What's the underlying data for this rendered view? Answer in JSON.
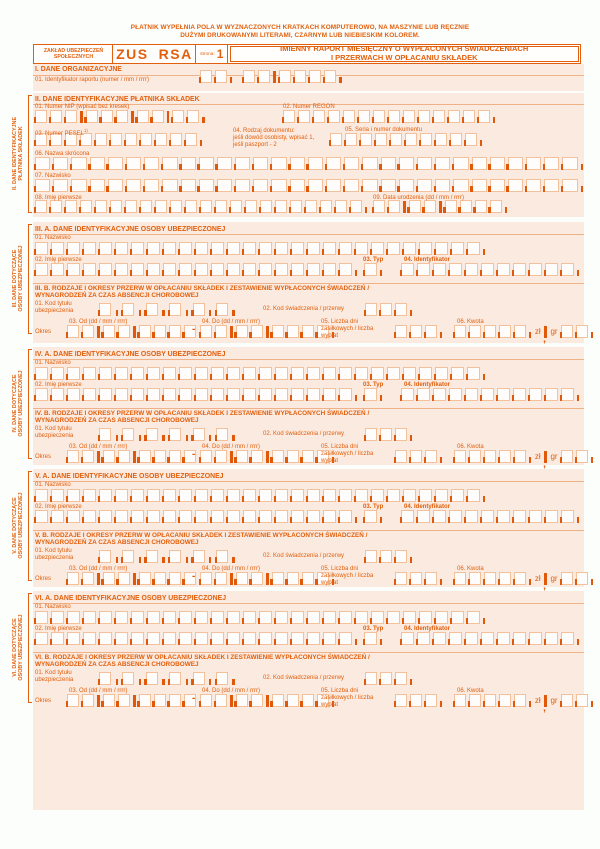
{
  "colors": {
    "accent": "#e2600d",
    "background": "#fbeae0",
    "cell_border": "#f3c09c",
    "tick": "#e0590a"
  },
  "note": {
    "line1": "PŁATNIK WYPEŁNIA POLA W WYZNACZONYCH KRATKACH KOMPUTEROWO, NA MASZYNIE LUB RĘCZNIE",
    "line2": "DUŻYMI DRUKOWANYMI LITERAMI, CZARNYM LUB NIEBIESKIM KOLOREM."
  },
  "header": {
    "org_line1": "ZAKŁAD UBEZPIECZEŃ",
    "org_line2": "SPOŁECZNYCH",
    "form_code": "ZUS",
    "form_symbol": "RSA",
    "page_label": "strona:",
    "page_number": "1",
    "title_line1": "IMIENNY RAPORT MIESIĘCZNY O WYPŁACONYCH ŚWIADCZENIACH",
    "title_line2": "I PRZERWACH W OPŁACANIU SKŁADEK"
  },
  "section_i": {
    "title": "I. DANE ORGANIZACYJNE",
    "f01": "01. Identyfikator raportu (numer / mm / rrrr)"
  },
  "section_ii": {
    "title": "II. DANE IDENTYFIKACYJNE PŁATNIKA SKŁADEK",
    "side1": "II. DANE IDENTYFIKACYJNE",
    "side2": "PŁATNIKA SKŁADEK",
    "f01": "01. Numer NIP (wpisać bez kresek)",
    "f02": "02. Numer REGON",
    "f03": "03. Numer PESEL",
    "f03_sup": "1)",
    "f04a": "04. Rodzaj dokumentu:",
    "f04b": "jeśli dowód osobisty, wpisać 1,",
    "f04c": "jeśli paszport - 2",
    "f05": "05. Seria i numer dokumentu",
    "f06": "06. Nazwa skrócona",
    "f07": "07. Nazwisko",
    "f08": "08. Imię pierwsze",
    "f09": "09. Data urodzenia (dd / mm / rrrr)"
  },
  "person_labels": {
    "f01": "01. Nazwisko",
    "f02": "02. Imię pierwsze",
    "f03": "03. Typ",
    "f04": "04. Identyfikator",
    "b01a": "01. Kod tytułu",
    "b01b": "ubezpieczenia",
    "b02": "02. Kod świadczenia / przerwy",
    "okres": "Okres",
    "b03": "03. Od (dd / mm / rrrr)",
    "b04": "04. Do (dd / mm / rrrr)",
    "b05a": "05. Liczba dni",
    "b05b": "zasiłkowych / liczba",
    "b05c": "wypłat",
    "b06": "06. Kwota",
    "zl": "zł",
    "gr": "gr",
    "dash": "-"
  },
  "persons": [
    {
      "id": "iii",
      "side1": "III. DANE DOTYCZĄCE",
      "side2": "OSOBY UBEZPIECZONEJ",
      "a_title": "III. A. DANE IDENTYFIKACYJNE OSOBY UBEZPIECZONEJ",
      "b_title1": "III. B. RODZAJE I OKRESY PRZERW  W  OPŁACANIU SKŁADEK I ZESTAWIENIE WYPŁACONYCH ŚWIADCZEŃ /",
      "b_title2": "WYNAGRODZEŃ ZA CZAS ABSENCJI CHOROBOWEJ"
    },
    {
      "id": "iv",
      "side1": "IV. DANE DOTYCZĄCE",
      "side2": "OSOBY UBEZPIECZONEJ",
      "a_title": "IV. A. DANE IDENTYFIKACYJNE OSOBY UBEZPIECZONEJ",
      "b_title1": "IV. B. RODZAJE I OKRESY PRZERW  W  OPŁACANIU SKŁADEK I ZESTAWIENIE WYPŁACONYCH ŚWIADCZEŃ /",
      "b_title2": "WYNAGRODZEŃ ZA CZAS ABSENCJI CHOROBOWEJ"
    },
    {
      "id": "v",
      "side1": "V. DANE DOTYCZĄCE",
      "side2": "OSOBY UBEZPIECZONEJ",
      "a_title": "V. A. DANE IDENTYFIKACYJNE OSOBY UBEZPIECZONEJ",
      "b_title1": "V. B. RODZAJE I OKRESY PRZERW  W  OPŁACANIU SKŁADEK I ZESTAWIENIE WYPŁACONYCH ŚWIADCZEŃ /",
      "b_title2": "WYNAGRODZEŃ ZA CZAS ABSENCJI CHOROBOWEJ"
    },
    {
      "id": "vi",
      "side1": "VI. DANE DOTYCZĄCE",
      "side2": "OSOBY UBEZPIECZONEJ",
      "a_title": "VI. A. DANE IDENTYFIKACYJNE OSOBY UBEZPIECZONEJ",
      "b_title1": "VI. B. RODZAJE I OKRESY PRZERW  W  OPŁACANIU SKŁADEK I ZESTAWIENIE WYPŁACONYCH ŚWIADCZEŃ /",
      "b_title2": "WYNAGRODZEŃ ZA CZAS ABSENCJI CHOROBOWEJ"
    }
  ]
}
